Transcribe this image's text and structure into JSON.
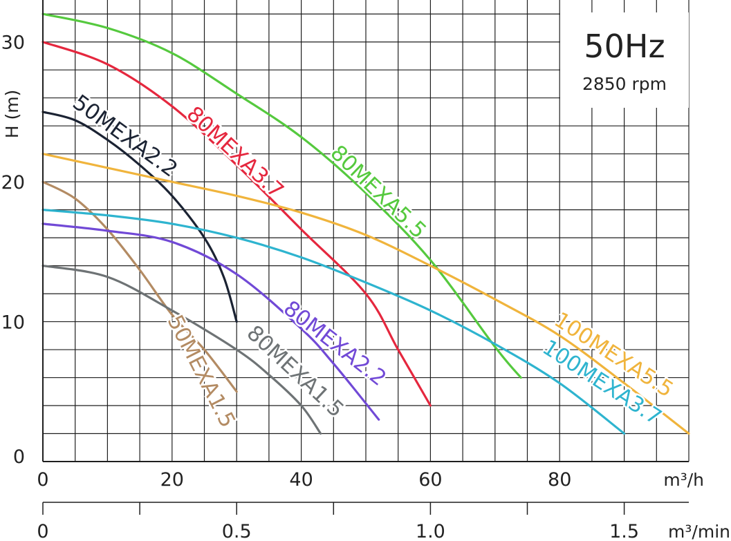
{
  "chart_data": {
    "type": "line",
    "frequency": "50Hz",
    "speed": "2850 rpm",
    "ylabel": "H (m)",
    "xlabel": "m³/h",
    "x2label": "m³/min",
    "xlim": [
      0,
      100
    ],
    "ylim": [
      0,
      33
    ],
    "x_ticks": [
      "0",
      "20",
      "40",
      "60",
      "80"
    ],
    "x2_ticks": [
      "0",
      "0.5",
      "1.0",
      "1.5"
    ],
    "y_ticks": [
      "0",
      "10",
      "20",
      "30"
    ],
    "grid": true,
    "series": [
      {
        "name": "50MEXA1.5",
        "color": "#b38b63",
        "x": [
          0,
          5,
          10,
          15,
          20,
          25,
          30
        ],
        "y": [
          20,
          18.8,
          16.6,
          13.7,
          10.5,
          8,
          5
        ]
      },
      {
        "name": "50MEXA2.2",
        "color": "#1b2333",
        "x": [
          0,
          5,
          10,
          15,
          20,
          25,
          28,
          30
        ],
        "y": [
          25,
          24.4,
          23,
          21.2,
          19,
          16,
          13.2,
          10
        ]
      },
      {
        "name": "80MEXA1.5",
        "color": "#6e7375",
        "x": [
          0,
          10,
          20,
          30,
          35,
          40,
          43
        ],
        "y": [
          14,
          13.2,
          10.8,
          8,
          6.2,
          4,
          2
        ]
      },
      {
        "name": "80MEXA2.2",
        "color": "#7149d6",
        "x": [
          0,
          10,
          20,
          30,
          40,
          45,
          52
        ],
        "y": [
          17,
          16.5,
          15.7,
          13.4,
          9.5,
          7,
          3
        ]
      },
      {
        "name": "80MEXA3.7",
        "color": "#e5273e",
        "x": [
          0,
          10,
          20,
          30,
          40,
          50,
          55,
          60
        ],
        "y": [
          30,
          28.4,
          25.4,
          21.2,
          16.6,
          12,
          8,
          4
        ]
      },
      {
        "name": "80MEXA5.5",
        "color": "#55c93e",
        "x": [
          0,
          10,
          20,
          30,
          40,
          50,
          60,
          70,
          74
        ],
        "y": [
          32,
          31,
          29.2,
          26.3,
          23.2,
          19.2,
          14.4,
          8.2,
          6
        ]
      },
      {
        "name": "100MEXA3.7",
        "color": "#2eb4cf",
        "x": [
          0,
          10,
          20,
          30,
          40,
          50,
          60,
          70,
          80,
          90
        ],
        "y": [
          18,
          17.6,
          17,
          16,
          14.6,
          12.8,
          10.8,
          8.4,
          5.6,
          2
        ]
      },
      {
        "name": "100MEXA5.5",
        "color": "#f0b43c",
        "x": [
          0,
          10,
          20,
          30,
          40,
          50,
          60,
          70,
          80,
          90,
          100
        ],
        "y": [
          22,
          21,
          20,
          19,
          17.8,
          16.2,
          14,
          11.6,
          9,
          5.6,
          2
        ]
      }
    ]
  }
}
